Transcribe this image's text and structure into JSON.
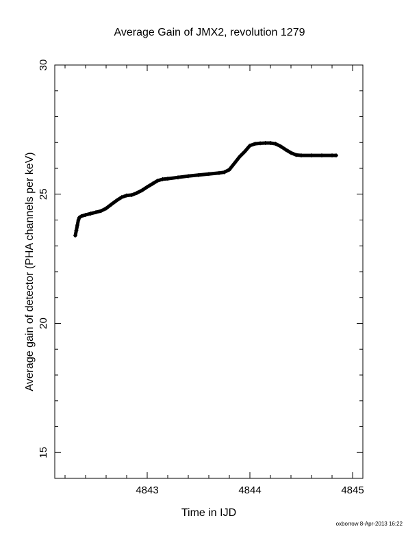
{
  "chart_data": {
    "type": "line",
    "title": "Average Gain of JMX2, revolution 1279",
    "xlabel": "Time in IJD",
    "ylabel": "Average gain of detector (PHA channels per keV)",
    "xlim": [
      4842.1,
      4845.1
    ],
    "ylim": [
      14,
      30
    ],
    "xticks": [
      "4843",
      "4844",
      "4845"
    ],
    "yticks": [
      "15",
      "20",
      "25",
      "30"
    ],
    "grid": false,
    "marker": "plus",
    "color": "#000000",
    "series": [
      {
        "x": [
          4842.3,
          4842.31,
          4842.32,
          4842.33,
          4842.34,
          4842.36,
          4842.4,
          4842.45,
          4842.5,
          4842.55,
          4842.6,
          4842.65,
          4842.7,
          4842.75,
          4842.8,
          4842.85,
          4842.9,
          4842.95,
          4843.0,
          4843.05,
          4843.1,
          4843.15,
          4843.2,
          4843.3,
          4843.4,
          4843.5,
          4843.6,
          4843.7,
          4843.75,
          4843.8,
          4843.85,
          4843.9,
          4843.95,
          4844.0,
          4844.05,
          4844.1,
          4844.15,
          4844.2,
          4844.25,
          4844.3,
          4844.35,
          4844.4,
          4844.45,
          4844.5,
          4844.6,
          4844.7,
          4844.8,
          4844.84
        ],
        "y": [
          23.4,
          23.6,
          23.8,
          24.0,
          24.1,
          24.15,
          24.2,
          24.25,
          24.3,
          24.35,
          24.45,
          24.6,
          24.75,
          24.88,
          24.95,
          24.97,
          25.05,
          25.15,
          25.28,
          25.4,
          25.52,
          25.58,
          25.6,
          25.65,
          25.7,
          25.74,
          25.78,
          25.82,
          25.85,
          25.95,
          26.2,
          26.45,
          26.65,
          26.88,
          26.95,
          26.97,
          26.98,
          26.98,
          26.95,
          26.85,
          26.72,
          26.6,
          26.52,
          26.5,
          26.5,
          26.5,
          26.5,
          26.5
        ]
      }
    ]
  },
  "footer": {
    "credit": "oxborrow  8-Apr-2013 16:22"
  }
}
